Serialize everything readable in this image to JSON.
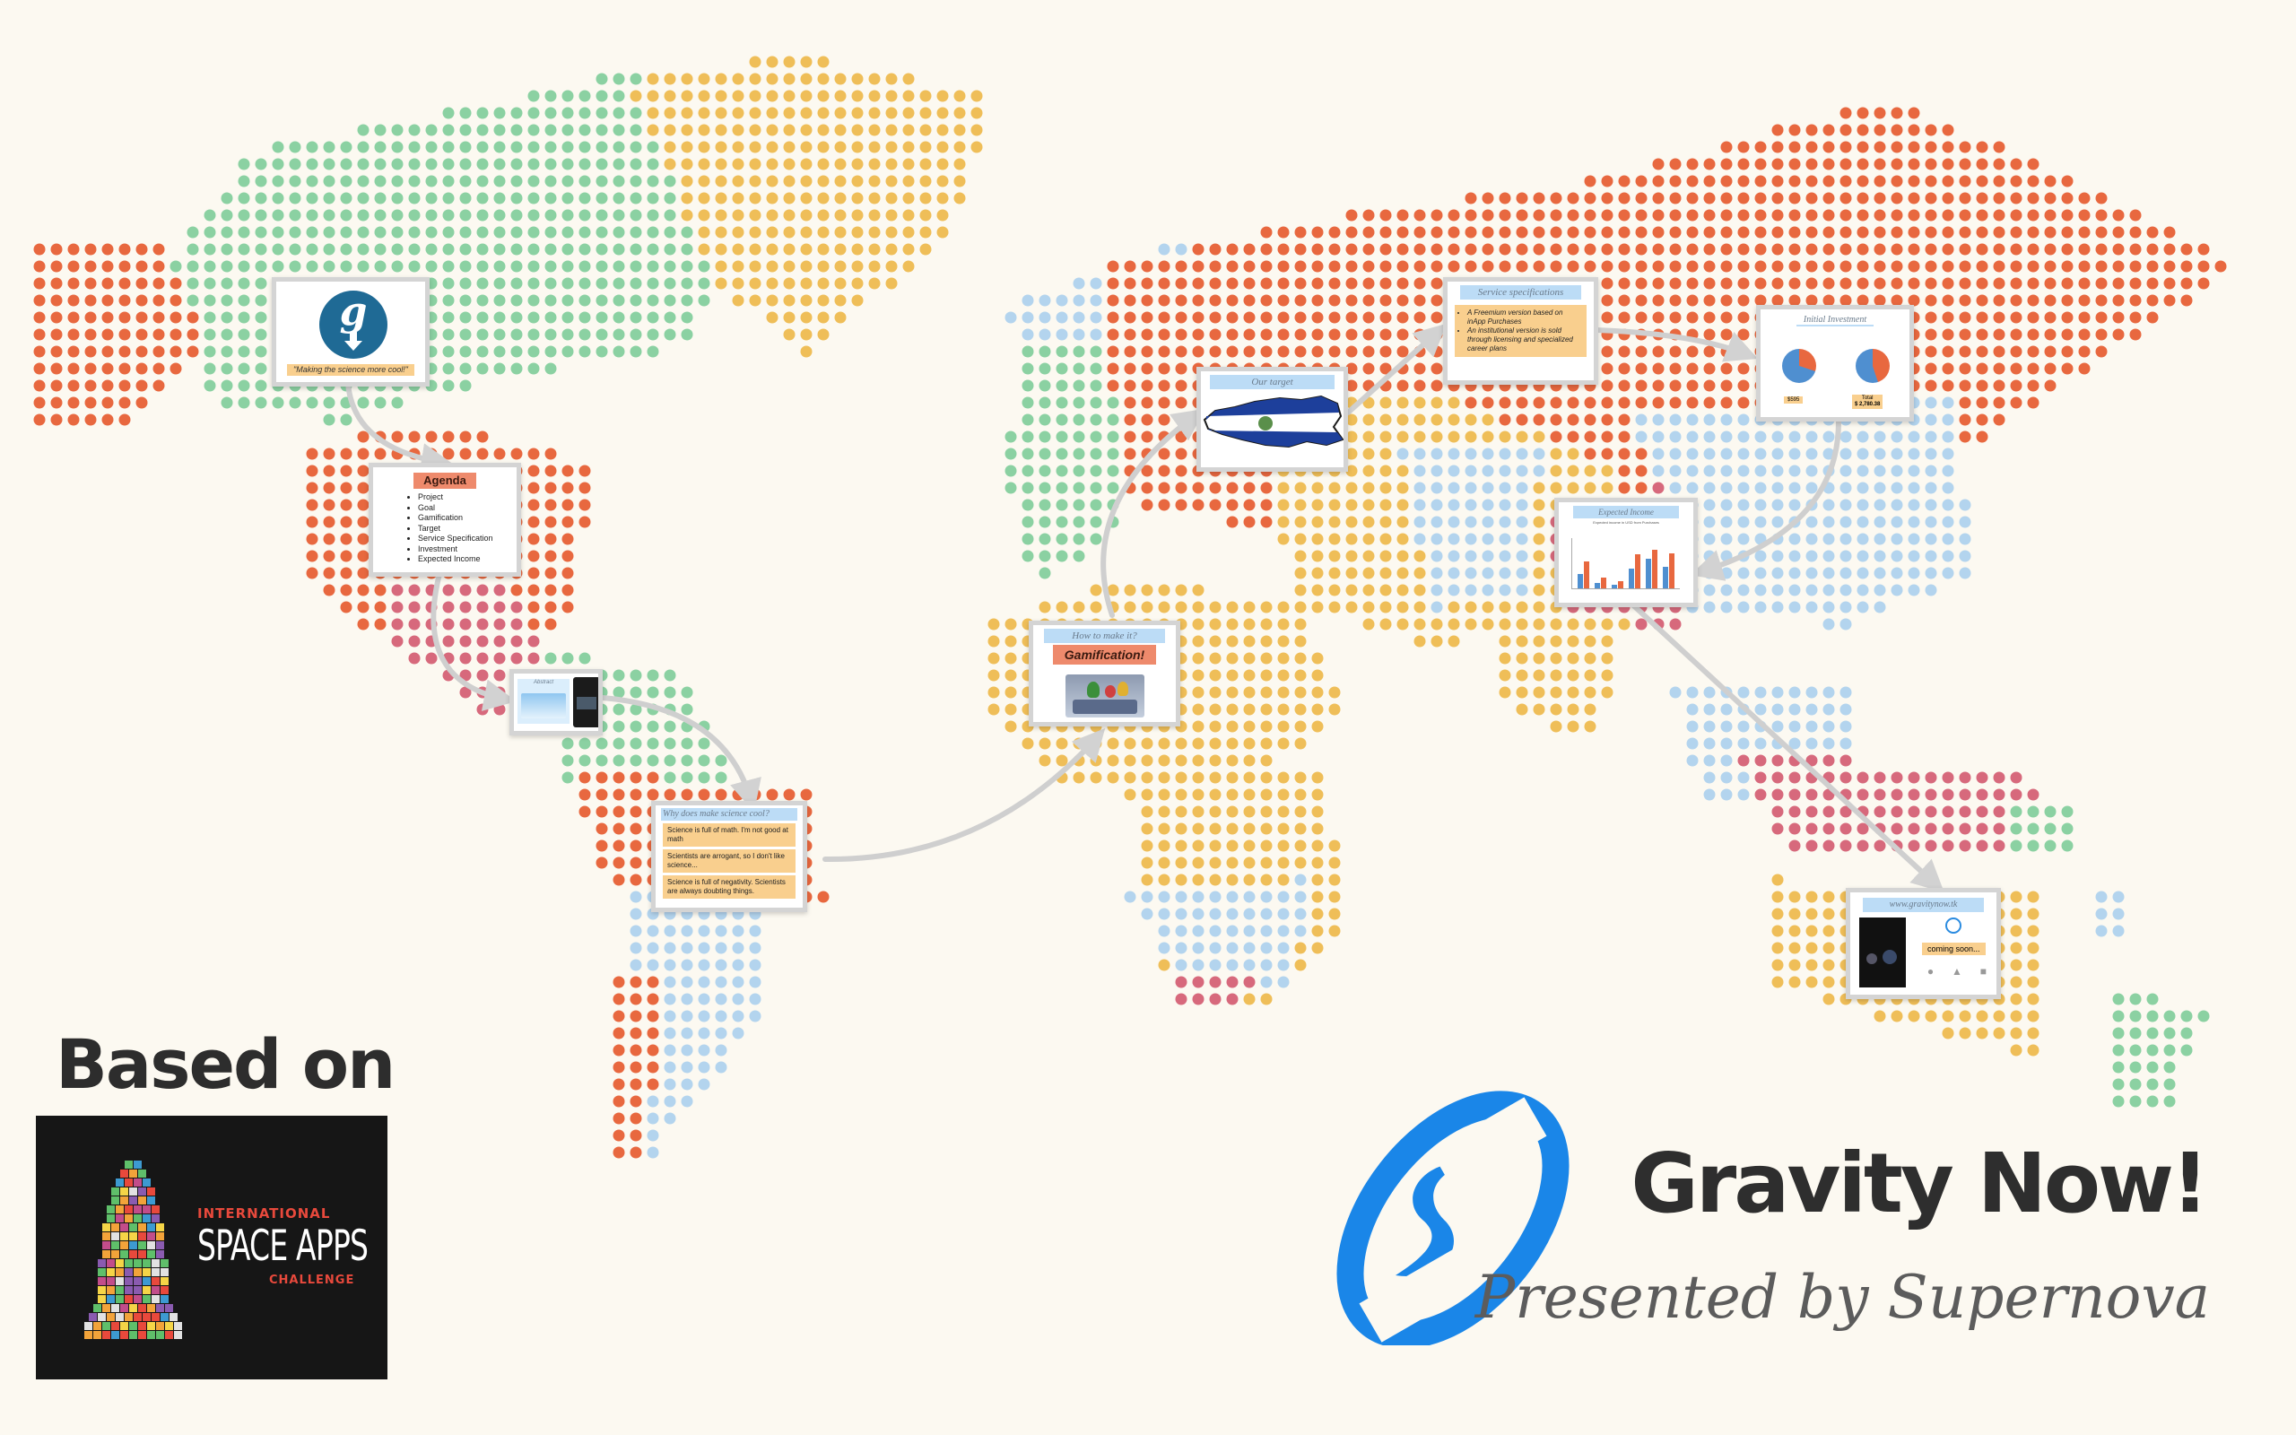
{
  "presentation": {
    "title": "Gravity Now!",
    "subtitle": "Presented by Supernova",
    "based_on": "Based on"
  },
  "space_apps": {
    "line1": "INTERNATIONAL",
    "line2": "SPACE APPS",
    "line3": "CHALLENGE"
  },
  "colors": {
    "background": "#fcf9f1",
    "dot_orange": "#e8683f",
    "dot_yellow": "#efbe58",
    "dot_green": "#8bd1a2",
    "dot_blue": "#b3d4ee",
    "dot_pink": "#d7697c",
    "path_gray": "#cfcfcf",
    "frame_title": "#bcdcf6",
    "frame_orange": "#ee8a6c",
    "frame_note": "#f9cf8e",
    "logo_blue": "#1a86e8"
  },
  "frames": {
    "intro": {
      "logo_letter": "g",
      "tagline": "\"Making the science more cool!\""
    },
    "agenda": {
      "title": "Agenda",
      "items": [
        "Project",
        "Goal",
        "Gamification",
        "Target",
        "Service Specification",
        "Investment",
        "Expected Income"
      ]
    },
    "project": {
      "label": "Abstract"
    },
    "why": {
      "title": "Why does make science cool?",
      "notes": [
        "Science is full of math. I'm not good at math",
        "Scientists are arrogant, so I don't like science...",
        "Science is full of negativity. Scientists are always doubting things."
      ]
    },
    "how": {
      "title": "How to make it?",
      "banner": "Gamification!"
    },
    "target": {
      "title": "Our target"
    },
    "service": {
      "title": "Service specifications",
      "bullets": [
        "A Freemium version based on inApp Purchases",
        "An institutional version is sold through licensing and specialized career plans"
      ]
    },
    "investment": {
      "title": "Initial Investment",
      "left_amount": "$595",
      "total_label": "Total",
      "total_amount": "$ 2,780.38"
    },
    "income": {
      "title": "Expected Income",
      "subtitle": "Expected income in USD from Purchases",
      "bars": [
        {
          "a": 30,
          "b": 55
        },
        {
          "a": 12,
          "b": 22
        },
        {
          "a": 8,
          "b": 14
        },
        {
          "a": 40,
          "b": 70
        },
        {
          "a": 62,
          "b": 80
        },
        {
          "a": 45,
          "b": 72
        }
      ]
    },
    "site": {
      "title": "www.gravitynow.tk",
      "status": "coming soon...",
      "platforms": [
        "apple-icon",
        "android-icon",
        "windows-icon"
      ]
    }
  }
}
